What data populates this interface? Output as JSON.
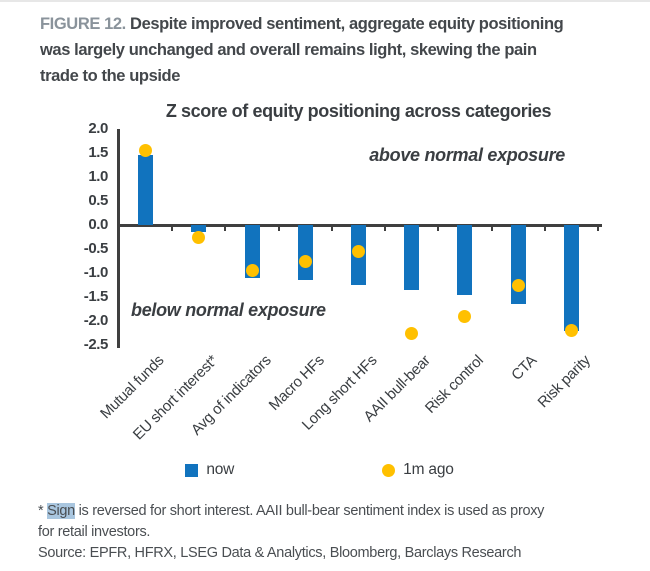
{
  "figure": {
    "label": "FIGURE 12.",
    "title_lines": [
      "Despite improved sentiment, aggregate equity positioning",
      "was largely unchanged and overall remains light, skewing the pain",
      "trade to the upside"
    ]
  },
  "chart_data": {
    "type": "bar",
    "title": "Z score of equity positioning across categories",
    "categories": [
      "Mutual funds",
      "EU short interest*",
      "Avg of indicators",
      "Macro HFs",
      "Long short HFs",
      "AAII bull-bear",
      "Risk control",
      "CTA",
      "Risk parity"
    ],
    "series": [
      {
        "name": "now",
        "type": "bar",
        "color": "#1173BE",
        "values": [
          1.45,
          -0.15,
          -1.1,
          -1.15,
          -1.25,
          -1.35,
          -1.45,
          -1.65,
          -2.2
        ]
      },
      {
        "name": "1m ago",
        "type": "scatter",
        "color": "#FFC000",
        "values": [
          1.55,
          -0.25,
          -0.95,
          -0.75,
          -0.55,
          -2.25,
          -1.9,
          -1.25,
          -2.2
        ]
      }
    ],
    "ylabel": "",
    "xlabel": "",
    "ylim": [
      -2.5,
      2.0
    ],
    "ytick_step": 0.5,
    "grid": false,
    "legend_position": "bottom",
    "annotations": {
      "above": "above normal exposure",
      "below": "below normal exposure"
    }
  },
  "footnote": {
    "prefix": "* ",
    "highlight": "Sign",
    "line1_rest": " is reversed for short interest. AAII bull-bear sentiment index is used as proxy",
    "line2": "for retail investors."
  },
  "source": "Source: EPFR, HFRX, LSEG Data & Analytics, Bloomberg, Barclays Research",
  "colors": {
    "bar_now": "#1173BE",
    "dot_1m_ago": "#FFC000",
    "axis": "#3F3F3F",
    "highlight": "#A9C6DF",
    "figure_label": "#8A939B",
    "text": "#43474B"
  }
}
